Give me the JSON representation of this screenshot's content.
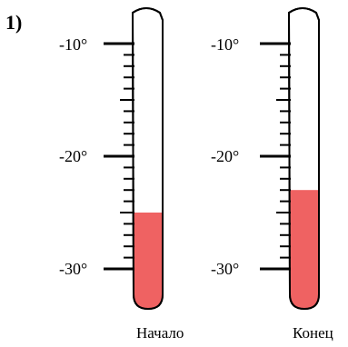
{
  "task_number": "1)",
  "scale": {
    "top_value": -10,
    "bottom_value": -30,
    "labels": [
      "-10°",
      "-20°",
      "-30°"
    ],
    "ticks_per_major": 10
  },
  "colors": {
    "liquid": "#ef6262",
    "outline": "#000000",
    "background": "#ffffff"
  },
  "thermometers": [
    {
      "caption": "Начало",
      "reading": -25
    },
    {
      "caption": "Конец",
      "reading": -23
    }
  ]
}
